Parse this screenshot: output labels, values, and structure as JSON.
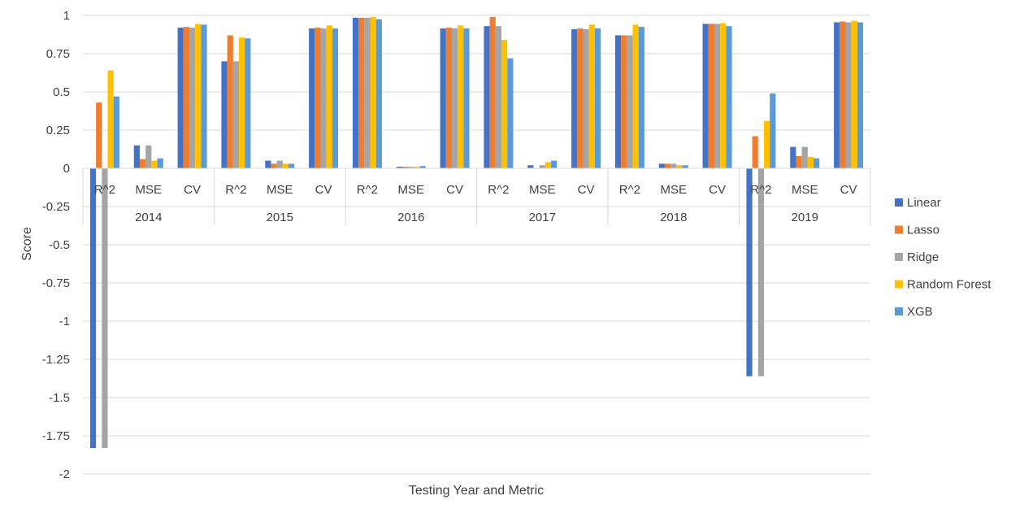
{
  "chart_data": {
    "type": "bar",
    "title": "",
    "xlabel": "Testing Year and Metric",
    "ylabel": "Score",
    "ylim": [
      -2,
      1
    ],
    "yticks": [
      1,
      0.75,
      0.5,
      0.25,
      0,
      -0.25,
      -0.5,
      -0.75,
      -1,
      -1.25,
      -1.5,
      -1.75,
      -2
    ],
    "grid": true,
    "legend_position": "right",
    "groups": [
      "2014",
      "2015",
      "2016",
      "2017",
      "2018",
      "2019"
    ],
    "metrics": [
      "R^2",
      "MSE",
      "CV"
    ],
    "series": [
      {
        "name": "Linear",
        "color": "#4472C4",
        "values": [
          -1.83,
          0.15,
          0.92,
          0.7,
          0.05,
          0.915,
          0.985,
          0.01,
          0.915,
          0.93,
          0.02,
          0.91,
          0.87,
          0.03,
          0.945,
          -1.36,
          0.14,
          0.955
        ]
      },
      {
        "name": "Lasso",
        "color": "#ED7D31",
        "values": [
          0.43,
          0.06,
          0.925,
          0.87,
          0.03,
          0.92,
          0.985,
          0.01,
          0.92,
          0.99,
          0.0,
          0.915,
          0.87,
          0.03,
          0.945,
          0.21,
          0.08,
          0.96
        ]
      },
      {
        "name": "Ridge",
        "color": "#A5A5A5",
        "values": [
          -1.83,
          0.15,
          0.92,
          0.7,
          0.05,
          0.915,
          0.985,
          0.01,
          0.915,
          0.93,
          0.02,
          0.91,
          0.87,
          0.03,
          0.945,
          -1.36,
          0.14,
          0.955
        ]
      },
      {
        "name": "Random Forest",
        "color": "#FFC000",
        "values": [
          0.64,
          0.05,
          0.945,
          0.855,
          0.03,
          0.935,
          0.99,
          0.01,
          0.935,
          0.84,
          0.04,
          0.94,
          0.94,
          0.02,
          0.95,
          0.31,
          0.075,
          0.965
        ]
      },
      {
        "name": "XGB",
        "color": "#5B9BD5",
        "values": [
          0.47,
          0.065,
          0.94,
          0.85,
          0.03,
          0.915,
          0.975,
          0.015,
          0.915,
          0.72,
          0.05,
          0.915,
          0.925,
          0.02,
          0.93,
          0.49,
          0.065,
          0.955
        ]
      }
    ]
  }
}
